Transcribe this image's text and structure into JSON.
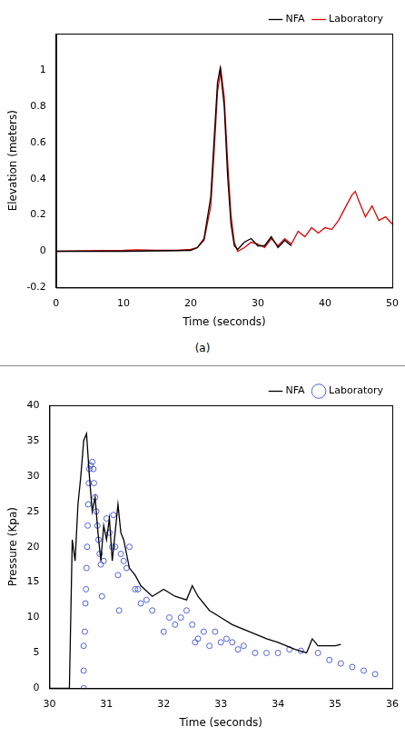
{
  "chart_data": [
    {
      "type": "line",
      "caption": "(a)",
      "x_label": "Time (seconds)",
      "y_label": "Elevation (meters)",
      "xlim": [
        0,
        50
      ],
      "xticks": [
        0,
        10,
        20,
        30,
        40,
        50
      ],
      "ylim": [
        -0.2,
        1.2
      ],
      "yticks": [
        -0.2,
        0,
        0.2,
        0.4,
        0.6,
        0.8,
        1
      ],
      "grid": false,
      "legend": "upper right",
      "series": [
        {
          "name": "NFA",
          "color": "#000000",
          "type": "line",
          "x": [
            0,
            10,
            20,
            21,
            22,
            23,
            23.5,
            24,
            24.4,
            25,
            25.5,
            26,
            26.5,
            27,
            28,
            29,
            30,
            31,
            32,
            33,
            34,
            35
          ],
          "values": [
            0,
            0,
            0.005,
            0.02,
            0.07,
            0.3,
            0.62,
            0.93,
            1.01,
            0.8,
            0.42,
            0.15,
            0.03,
            0.01,
            0.05,
            0.07,
            0.03,
            0.03,
            0.08,
            0.02,
            0.06,
            0.03
          ]
        },
        {
          "name": "Laboratory",
          "color": "#e00000",
          "type": "line",
          "x": [
            0,
            5,
            10,
            12,
            15,
            18,
            20,
            21,
            22,
            23,
            23.5,
            24,
            24.5,
            25,
            25.5,
            26,
            26.5,
            27,
            28,
            29,
            30,
            31,
            32,
            33,
            34,
            35,
            36,
            37,
            38,
            39,
            40,
            41,
            42,
            43,
            44,
            44.5,
            45,
            46,
            47,
            48,
            49,
            50
          ],
          "values": [
            0,
            0.003,
            0.005,
            0.008,
            0.005,
            0.005,
            0.01,
            0.02,
            0.06,
            0.25,
            0.55,
            0.88,
            1.0,
            0.85,
            0.5,
            0.2,
            0.05,
            0,
            0.02,
            0.05,
            0.04,
            0.02,
            0.07,
            0.03,
            0.07,
            0.04,
            0.11,
            0.08,
            0.13,
            0.1,
            0.13,
            0.12,
            0.17,
            0.24,
            0.31,
            0.33,
            0.28,
            0.19,
            0.25,
            0.17,
            0.19,
            0.15
          ]
        }
      ]
    },
    {
      "type": "line",
      "x_label": "Time (seconds)",
      "y_label": "Pressure (Kpa)",
      "xlim": [
        30,
        36
      ],
      "xticks": [
        30,
        31,
        32,
        33,
        34,
        35,
        36
      ],
      "ylim": [
        0,
        40
      ],
      "yticks": [
        0,
        5,
        10,
        15,
        20,
        25,
        30,
        35,
        40
      ],
      "grid": false,
      "legend": "upper right",
      "series": [
        {
          "name": "NFA",
          "color": "#000000",
          "type": "line",
          "x": [
            30,
            30.35,
            30.4,
            30.45,
            30.5,
            30.55,
            30.6,
            30.65,
            30.7,
            30.75,
            30.8,
            30.85,
            30.9,
            30.95,
            31.0,
            31.05,
            31.1,
            31.15,
            31.2,
            31.25,
            31.3,
            31.4,
            31.5,
            31.6,
            31.8,
            32,
            32.2,
            32.4,
            32.5,
            32.6,
            32.8,
            33,
            33.2,
            33.5,
            33.8,
            34,
            34.3,
            34.5,
            34.6,
            34.7,
            35,
            35.1
          ],
          "values": [
            0,
            0,
            21,
            18,
            26,
            30,
            35,
            36,
            30,
            25,
            27,
            22,
            18,
            23,
            21,
            24,
            18,
            22,
            26,
            22,
            21,
            17,
            16,
            14.5,
            13,
            14,
            13,
            12.5,
            14.5,
            13,
            11,
            10,
            9,
            8,
            7,
            6.5,
            5.5,
            5,
            7,
            6,
            6,
            6.2
          ]
        },
        {
          "name": "Laboratory",
          "color": "#4f5fe0",
          "type": "scatter",
          "marker": "circle",
          "x": [
            30.6,
            30.6,
            30.6,
            30.62,
            30.63,
            30.64,
            30.65,
            30.66,
            30.67,
            30.68,
            30.69,
            30.7,
            30.72,
            30.75,
            30.77,
            30.78,
            30.8,
            30.82,
            30.84,
            30.86,
            30.88,
            30.9,
            30.92,
            30.95,
            31,
            31.05,
            31.1,
            31.12,
            31.15,
            31.2,
            31.22,
            31.25,
            31.3,
            31.35,
            31.4,
            31.5,
            31.55,
            31.6,
            31.7,
            31.8,
            32,
            32.1,
            32.2,
            32.3,
            32.4,
            32.5,
            32.55,
            32.6,
            32.7,
            32.8,
            32.9,
            33,
            33.1,
            33.2,
            33.3,
            33.4,
            33.6,
            33.8,
            34,
            34.2,
            34.4,
            34.7,
            34.9,
            35.1,
            35.3,
            35.5,
            35.7
          ],
          "values": [
            0,
            2.5,
            6,
            8,
            12,
            14,
            17,
            20,
            23,
            26,
            29,
            31,
            31.5,
            32,
            31,
            29,
            27,
            25,
            23,
            21,
            19,
            17.5,
            13,
            18,
            24,
            22,
            20,
            24.5,
            20,
            16,
            11,
            19,
            18,
            17,
            20,
            14,
            14,
            12,
            12.5,
            11,
            8,
            10,
            9,
            10,
            11,
            9,
            6.5,
            7,
            8,
            6,
            8,
            6.5,
            7,
            6.5,
            5.5,
            6,
            5,
            5,
            5,
            5.5,
            5.3,
            5,
            4,
            3.5,
            3,
            2.5,
            2
          ]
        }
      ]
    }
  ]
}
